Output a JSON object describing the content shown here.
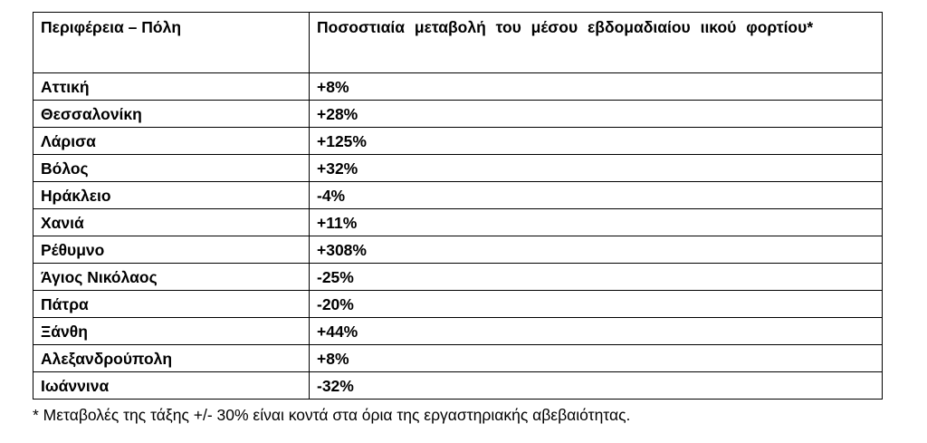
{
  "table": {
    "headers": [
      "Περιφέρεια – Πόλη",
      "Ποσοστιαία μεταβολή του μέσου εβδομαδιαίου ιικού φορτίου*"
    ],
    "rows": [
      [
        "Αττική",
        "+8%"
      ],
      [
        "Θεσσαλονίκη",
        "+28%"
      ],
      [
        "Λάρισα",
        "+125%"
      ],
      [
        "Βόλος",
        "+32%"
      ],
      [
        "Ηράκλειο",
        "-4%"
      ],
      [
        "Χανιά",
        "+11%"
      ],
      [
        "Ρέθυμνο",
        "+308%"
      ],
      [
        "Άγιος Νικόλαος",
        "-25%"
      ],
      [
        "Πάτρα",
        "-20%"
      ],
      [
        "Ξάνθη",
        "+44%"
      ],
      [
        "Αλεξανδρούπολη",
        "+8%"
      ],
      [
        "Ιωάννινα",
        "-32%"
      ]
    ]
  },
  "footnote": "* Μεταβολές της τάξης +/- 30% είναι κοντά στα όρια της εργαστηριακής αβεβαιότητας."
}
